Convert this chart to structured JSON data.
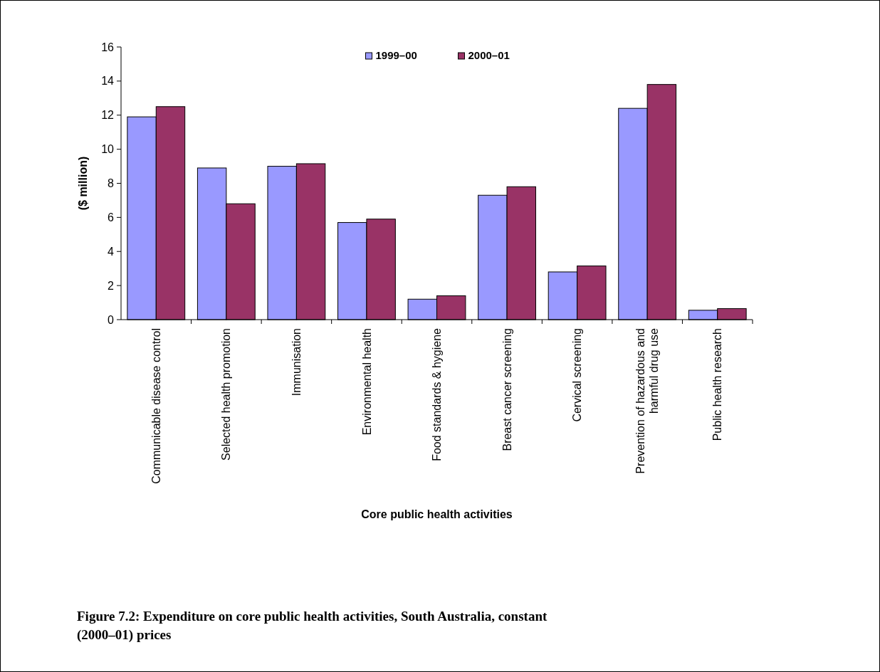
{
  "chart_data": {
    "type": "bar",
    "xlabel": "Core public health activities",
    "ylabel": "($ million)",
    "categories": [
      "Communicable disease control",
      "Selected health promotion",
      "Immunisation",
      "Environmental health",
      "Food standards & hygiene",
      "Breast cancer screening",
      "Cervical screening",
      "Prevention of hazardous and harmful drug use",
      "Public health research"
    ],
    "series": [
      {
        "name": "1999–00",
        "color": "#9999ff",
        "values": [
          11.9,
          8.9,
          9.0,
          5.7,
          1.2,
          7.3,
          2.8,
          12.4,
          0.55
        ]
      },
      {
        "name": "2000–01",
        "color": "#993366",
        "values": [
          12.5,
          6.8,
          9.15,
          5.9,
          1.4,
          7.8,
          3.15,
          13.8,
          0.65
        ]
      }
    ],
    "ylim": [
      0,
      16
    ],
    "yticks": [
      0,
      2,
      4,
      6,
      8,
      10,
      12,
      14,
      16
    ],
    "grid": false,
    "legend": "top",
    "annotations": [
      "Figure 7.2: Expenditure on core public health activities, South Australia, constant (2000–01) prices"
    ]
  }
}
